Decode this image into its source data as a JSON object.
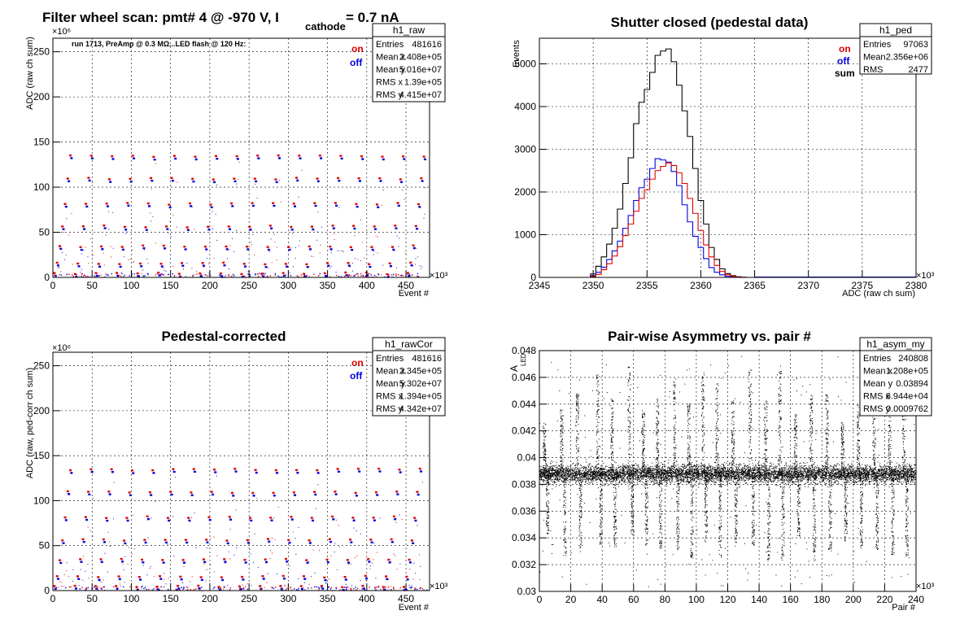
{
  "chart_data": [
    {
      "id": "raw",
      "type": "scatter",
      "title": "Filter wheel scan: pmt#   4 @  -970 V, I",
      "title_sub": "cathode",
      "title_tail": " = 0.7 nA",
      "xlabel": "Event #",
      "ylabel": "ADC (raw ch sum)",
      "x_exponent": "×10³",
      "y_exponent": "×10⁶",
      "xlim": [
        0,
        480
      ],
      "ylim": [
        0,
        265
      ],
      "xticks": [
        0,
        50,
        100,
        150,
        200,
        250,
        300,
        350,
        400,
        450
      ],
      "yticks": [
        0,
        50,
        100,
        150,
        200,
        250
      ],
      "note": "run 1713, PreAmp @ 0.3 MΩ...LED flash @  120 Hz:",
      "legend": {
        "on": "on",
        "off": "off"
      },
      "stats": {
        "name": "h1_raw",
        "rows": [
          {
            "label": "Entries",
            "value": "481616"
          },
          {
            "label": "Mean x",
            "value": "2.408e+05"
          },
          {
            "label": "Mean y",
            "value": "5.016e+07"
          },
          {
            "label": "RMS x",
            "value": "1.39e+05"
          },
          {
            "label": "RMS y",
            "value": "4.415e+07"
          }
        ]
      },
      "levels": [
        3,
        14,
        33,
        55,
        80,
        108,
        133
      ],
      "series": [
        {
          "name": "on",
          "color": "#e00000"
        },
        {
          "name": "off",
          "color": "#0000e0"
        }
      ]
    },
    {
      "id": "ped",
      "type": "line",
      "title": "Shutter closed (pedestal data)",
      "xlabel": "ADC (raw ch sum)",
      "ylabel": "Events",
      "x_exponent": "×10³",
      "xlim": [
        2345,
        2380
      ],
      "ylim": [
        0,
        5600
      ],
      "xticks": [
        2345,
        2350,
        2355,
        2360,
        2365,
        2370,
        2375,
        2380
      ],
      "yticks": [
        0,
        1000,
        2000,
        3000,
        4000,
        5000
      ],
      "legend": {
        "on": "on",
        "off": "off",
        "sum": "sum"
      },
      "stats": {
        "name": "h1_ped",
        "rows": [
          {
            "label": "Entries",
            "value": "97063"
          },
          {
            "label": "Mean",
            "value": "2.356e+06"
          },
          {
            "label": "RMS",
            "value": "2477"
          }
        ]
      },
      "x": [
        2349.5,
        2350,
        2350.5,
        2351,
        2351.5,
        2352,
        2352.5,
        2353,
        2353.5,
        2354,
        2354.5,
        2355,
        2355.5,
        2356,
        2356.5,
        2357,
        2357.5,
        2358,
        2358.5,
        2359,
        2359.5,
        2360,
        2360.5,
        2361,
        2361.5,
        2362,
        2362.5,
        2363,
        2363.5,
        2364,
        2364.5,
        2365
      ],
      "series": [
        {
          "name": "sum",
          "color": "#000000",
          "values": [
            0,
            80,
            260,
            480,
            780,
            1150,
            1600,
            2200,
            2800,
            3600,
            4100,
            4400,
            4800,
            5200,
            5300,
            5350,
            5050,
            4500,
            3900,
            3300,
            2550,
            1800,
            1250,
            700,
            420,
            200,
            90,
            40,
            15,
            5,
            0,
            0
          ]
        },
        {
          "name": "off",
          "color": "#0000e0",
          "values": [
            0,
            40,
            120,
            240,
            420,
            620,
            850,
            1150,
            1450,
            1800,
            2100,
            2300,
            2550,
            2780,
            2750,
            2700,
            2480,
            2150,
            1700,
            1300,
            960,
            700,
            440,
            230,
            120,
            60,
            25,
            10,
            4,
            0,
            0,
            0
          ]
        },
        {
          "name": "on",
          "color": "#e00000",
          "values": [
            0,
            20,
            70,
            180,
            320,
            500,
            720,
            980,
            1250,
            1550,
            1850,
            2050,
            2300,
            2500,
            2600,
            2680,
            2620,
            2450,
            2200,
            1850,
            1500,
            1100,
            760,
            480,
            280,
            140,
            60,
            22,
            8,
            2,
            0,
            0
          ]
        }
      ]
    },
    {
      "id": "cor",
      "type": "scatter",
      "title": "Pedestal-corrected",
      "xlabel": "Event #",
      "ylabel": "ADC (raw, ped-corr ch sum)",
      "x_exponent": "×10³",
      "y_exponent": "×10⁶",
      "xlim": [
        0,
        480
      ],
      "ylim": [
        0,
        265
      ],
      "xticks": [
        0,
        50,
        100,
        150,
        200,
        250,
        300,
        350,
        400,
        450
      ],
      "yticks": [
        0,
        50,
        100,
        150,
        200,
        250
      ],
      "legend": {
        "on": "on",
        "off": "off"
      },
      "stats": {
        "name": "h1_rawCor",
        "rows": [
          {
            "label": "Entries",
            "value": "481616"
          },
          {
            "label": "Mean x",
            "value": "2.345e+05"
          },
          {
            "label": "Mean y",
            "value": "5.302e+07"
          },
          {
            "label": "RMS x",
            "value": "1.394e+05"
          },
          {
            "label": "RMS y",
            "value": "4.342e+07"
          }
        ]
      },
      "levels": [
        3,
        14,
        33,
        55,
        80,
        108,
        133
      ],
      "series": [
        {
          "name": "on",
          "color": "#e00000"
        },
        {
          "name": "off",
          "color": "#0000e0"
        }
      ]
    },
    {
      "id": "asym",
      "type": "scatter",
      "title": "Pair-wise Asymmetry vs. pair #",
      "xlabel": "Pair #",
      "ylabel": "A",
      "ylabel_sub": "LED",
      "x_exponent": "×10³",
      "xlim": [
        0,
        240
      ],
      "ylim": [
        0.03,
        0.048
      ],
      "xticks": [
        0,
        20,
        40,
        60,
        80,
        100,
        120,
        140,
        160,
        180,
        200,
        220,
        240
      ],
      "yticks": [
        0.03,
        0.032,
        0.034,
        0.036,
        0.038,
        0.04,
        0.042,
        0.044,
        0.046,
        0.048
      ],
      "stats": {
        "name": "h1_asym_my",
        "rows": [
          {
            "label": "Entries",
            "value": "240808"
          },
          {
            "label": "Mean x",
            "value": "1.208e+05"
          },
          {
            "label": "Mean y",
            "value": "0.03894"
          },
          {
            "label": "RMS x",
            "value": "6.944e+04"
          },
          {
            "label": "RMS y",
            "value": "0.0009762"
          }
        ]
      },
      "band_center": 0.0388,
      "band_halfwidth": 0.0006,
      "spike_x": [
        3,
        14,
        24,
        37,
        46,
        57,
        66,
        75,
        86,
        95,
        104,
        113,
        123,
        134,
        144,
        153,
        163,
        173,
        183,
        193,
        203,
        213,
        223,
        232
      ]
    }
  ]
}
